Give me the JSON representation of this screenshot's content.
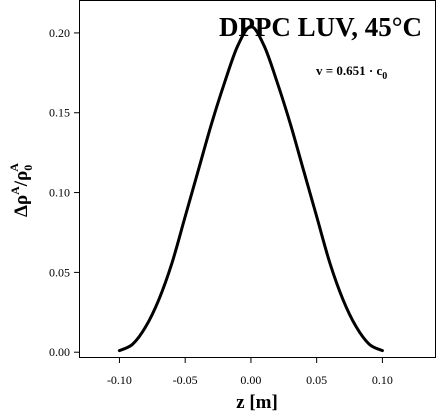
{
  "chart_data": {
    "type": "line",
    "title": "DPPC LUV, 45°C",
    "annotation": {
      "main": "v = 0.651 · c",
      "sub": "0"
    },
    "xlabel": "z [m]",
    "ylabel": {
      "delta": "Δρ",
      "sup1": "A",
      "slash": "/ρ",
      "sub": "0",
      "sup2": "A"
    },
    "xlim": [
      -0.13,
      0.14
    ],
    "ylim": [
      -0.003,
      0.22
    ],
    "x_ticks": [
      -0.1,
      -0.05,
      0.0,
      0.05,
      0.1
    ],
    "x_tick_labels": [
      "-0.10",
      "-0.05",
      "0.00",
      "0.05",
      "0.10"
    ],
    "y_ticks": [
      0.0,
      0.05,
      0.1,
      0.15,
      0.2
    ],
    "y_tick_labels": [
      "0.00",
      "0.05",
      "0.10",
      "0.15",
      "0.20"
    ],
    "grid": false,
    "line_color": "#000000",
    "series": [
      {
        "x": [
          -0.1,
          -0.09,
          -0.08,
          -0.07,
          -0.06,
          -0.05,
          -0.04,
          -0.03,
          -0.02,
          -0.01,
          0.0,
          0.01,
          0.02,
          0.03,
          0.04,
          0.05,
          0.06,
          0.07,
          0.08,
          0.09,
          0.1
        ],
        "values": [
          0.001,
          0.005,
          0.016,
          0.033,
          0.056,
          0.085,
          0.114,
          0.143,
          0.169,
          0.192,
          0.204,
          0.192,
          0.169,
          0.143,
          0.114,
          0.085,
          0.056,
          0.033,
          0.016,
          0.005,
          0.001
        ]
      }
    ]
  }
}
